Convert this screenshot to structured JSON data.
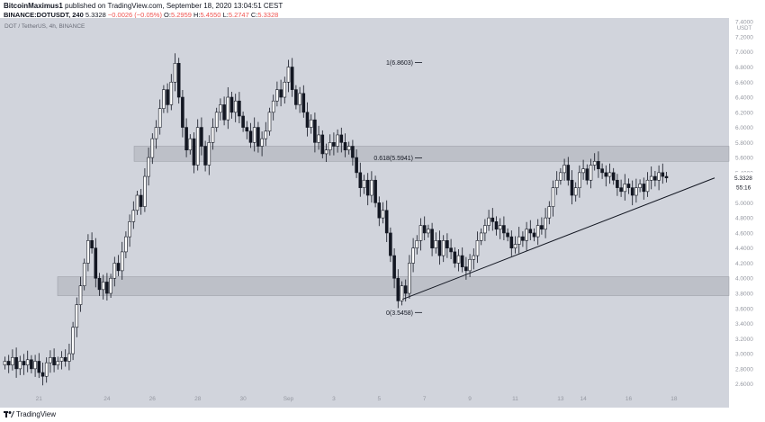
{
  "header": {
    "author": "BitcoinMaximus1",
    "published_text": "published on TradingView.com, September 18, 2020 13:04:51 CEST",
    "symbol_line": "BINANCE:DOTUSDT, 240",
    "last": "5.3328",
    "change": "−0.0026 (−0.05%)",
    "o_label": "O:",
    "o_value": "5.2959",
    "h_label": "H:",
    "h_value": "5.4550",
    "l_label": "L:",
    "l_value": "5.2747",
    "c_label": "C:",
    "c_value": "5.3328"
  },
  "footer": {
    "brand": "TradingView",
    "logo_icon": "tradingview-logo-icon"
  },
  "colors": {
    "background": "#d1d4dc",
    "candle": "#131722",
    "zone": "#a9acb4",
    "axis_text": "#9598a1",
    "price_tag": "#ffffff"
  },
  "chart_data": {
    "type": "candlestick",
    "legend": "DOT / TetherUS, 4h, BINANCE",
    "y_unit": "USDT",
    "ylim": [
      2.5,
      7.45
    ],
    "grid": false,
    "y_ticks": [
      "7.4000",
      "7.2000",
      "7.0000",
      "6.8000",
      "6.6000",
      "6.4000",
      "6.2000",
      "6.0000",
      "5.8000",
      "5.6000",
      "5.4000",
      "5.2000",
      "5.0000",
      "4.8000",
      "4.6000",
      "4.4000",
      "4.2000",
      "4.0000",
      "3.8000",
      "3.6000",
      "3.4000",
      "3.2000",
      "3.0000",
      "2.8000",
      "2.6000"
    ],
    "x_ticks": [
      {
        "label": "21",
        "index": 9
      },
      {
        "label": "24",
        "index": 27
      },
      {
        "label": "26",
        "index": 39
      },
      {
        "label": "28",
        "index": 51
      },
      {
        "label": "30",
        "index": 63
      },
      {
        "label": "Sep",
        "index": 75
      },
      {
        "label": "3",
        "index": 87
      },
      {
        "label": "5",
        "index": 99
      },
      {
        "label": "7",
        "index": 111
      },
      {
        "label": "9",
        "index": 123
      },
      {
        "label": "11",
        "index": 135
      },
      {
        "label": "13",
        "index": 147
      },
      {
        "label": "14",
        "index": 153
      },
      {
        "label": "16",
        "index": 165
      },
      {
        "label": "18",
        "index": 177
      }
    ],
    "candles_close": [
      2.9,
      2.85,
      2.95,
      2.8,
      2.9,
      2.85,
      2.92,
      2.8,
      2.9,
      2.75,
      2.7,
      2.88,
      2.95,
      2.85,
      2.9,
      2.95,
      2.9,
      3.0,
      3.35,
      3.65,
      3.9,
      4.2,
      4.5,
      4.4,
      4.0,
      3.85,
      3.95,
      3.8,
      4.0,
      4.2,
      4.1,
      4.35,
      4.55,
      4.75,
      4.9,
      5.1,
      4.95,
      5.35,
      5.6,
      5.85,
      6.0,
      6.25,
      6.5,
      6.3,
      6.6,
      6.85,
      6.4,
      6.0,
      5.7,
      5.85,
      5.5,
      6.0,
      5.75,
      5.5,
      5.8,
      6.0,
      6.2,
      6.3,
      6.1,
      6.4,
      6.2,
      6.35,
      6.15,
      6.0,
      5.95,
      5.8,
      6.0,
      5.75,
      5.85,
      5.95,
      6.2,
      6.35,
      6.5,
      6.4,
      6.6,
      6.8,
      6.5,
      6.3,
      6.45,
      6.2,
      6.0,
      6.1,
      5.8,
      5.9,
      5.65,
      5.7,
      5.8,
      5.75,
      5.9,
      5.8,
      5.7,
      5.75,
      5.6,
      5.4,
      5.2,
      5.3,
      5.1,
      5.3,
      5.0,
      4.8,
      4.9,
      4.6,
      4.3,
      4.0,
      3.7,
      3.9,
      3.8,
      4.2,
      4.4,
      4.5,
      4.7,
      4.6,
      4.65,
      4.4,
      4.5,
      4.3,
      4.5,
      4.4,
      4.35,
      4.2,
      4.3,
      4.15,
      4.1,
      4.25,
      4.3,
      4.5,
      4.6,
      4.7,
      4.8,
      4.75,
      4.65,
      4.7,
      4.6,
      4.55,
      4.4,
      4.45,
      4.55,
      4.5,
      4.65,
      4.6,
      4.55,
      4.7,
      4.65,
      4.8,
      4.95,
      5.2,
      5.3,
      5.4,
      5.5,
      5.3,
      5.1,
      5.2,
      5.4,
      5.45,
      5.3,
      5.5,
      5.55,
      5.45,
      5.4,
      5.35,
      5.4,
      5.3,
      5.2,
      5.15,
      5.25,
      5.2,
      5.1,
      5.2,
      5.25,
      5.15,
      5.3,
      5.35,
      5.3,
      5.4,
      5.35,
      5.33
    ]
  },
  "annotations": {
    "fib_top": "1(6.8603)",
    "fib_mid": "0.618(5.5941)",
    "fib_bottom": "0(3.5458)",
    "price_label": "5.3328",
    "countdown": "55:16"
  }
}
